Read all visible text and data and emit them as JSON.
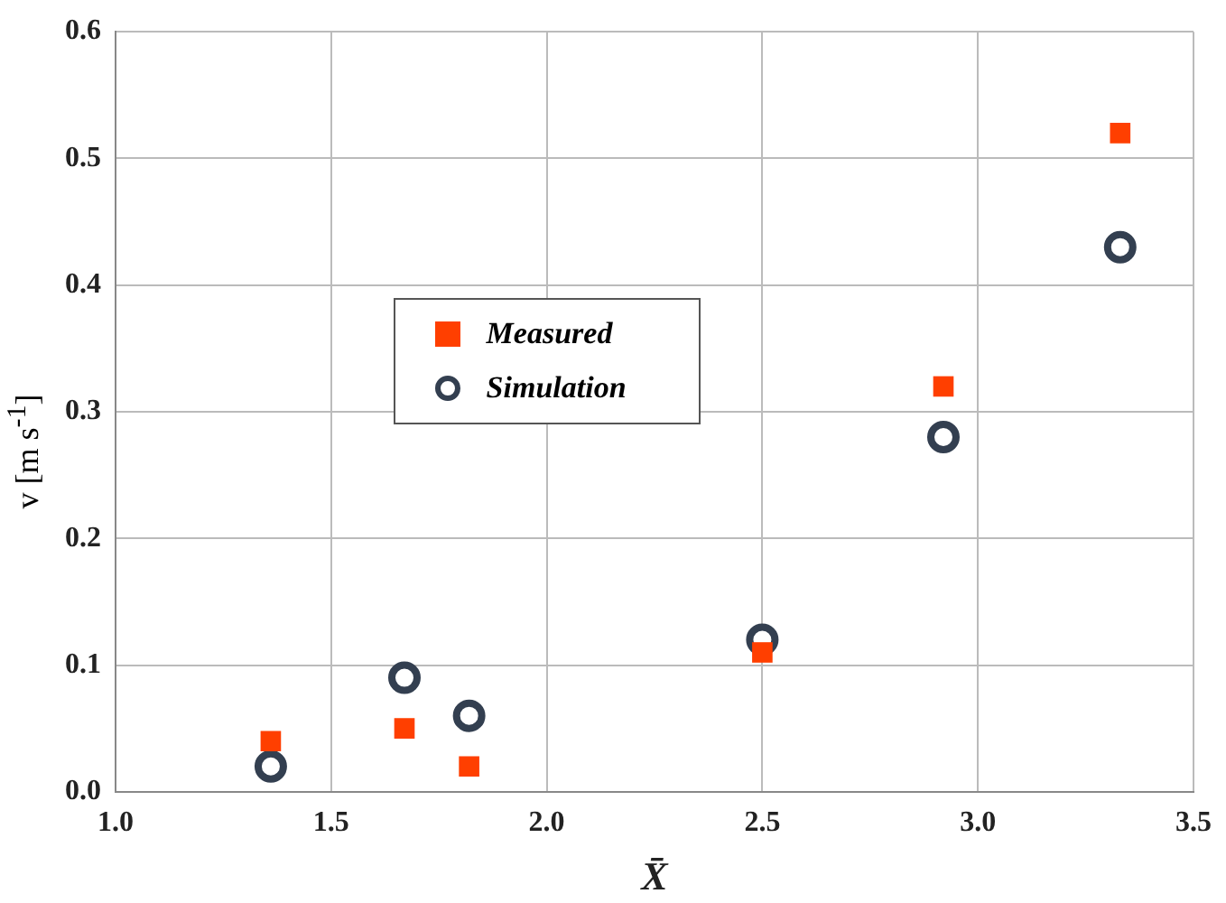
{
  "chart_data": {
    "type": "scatter",
    "xlabel": "X̄",
    "ylabel": "v [m s$^{-1}$]",
    "x": [
      1.36,
      1.67,
      1.82,
      2.5,
      2.92,
      3.33
    ],
    "series": [
      {
        "name": "Measured",
        "color": "#ff3f00",
        "marker": "square",
        "values": [
          0.04,
          0.05,
          0.02,
          0.11,
          0.32,
          0.52
        ]
      },
      {
        "name": "Simulation",
        "color": "#333f50",
        "marker": "circle",
        "values": [
          0.02,
          0.09,
          0.06,
          0.12,
          0.28,
          0.43
        ]
      }
    ],
    "xlim": [
      1.0,
      3.5
    ],
    "xticks": [
      {
        "value": 1,
        "label": "1.0"
      },
      {
        "value": 1.5,
        "label": "1.5"
      },
      {
        "value": 2,
        "label": "2.0"
      },
      {
        "value": 2.5,
        "label": "2.5"
      },
      {
        "value": 3,
        "label": "3.0"
      },
      {
        "value": 3.5,
        "label": "3.5"
      }
    ],
    "ylim": [
      0,
      0.6
    ],
    "yticks": [
      {
        "value": 0,
        "label": "0.0"
      },
      {
        "value": 0.1,
        "label": "0.1"
      },
      {
        "value": 0.2,
        "label": "0.2"
      },
      {
        "value": 0.3,
        "label": "0.3"
      },
      {
        "value": 0.4,
        "label": "0.4"
      },
      {
        "value": 0.5,
        "label": "0.5"
      },
      {
        "value": 0.6,
        "label": "0.6"
      }
    ],
    "grid": true,
    "legend": "center"
  }
}
